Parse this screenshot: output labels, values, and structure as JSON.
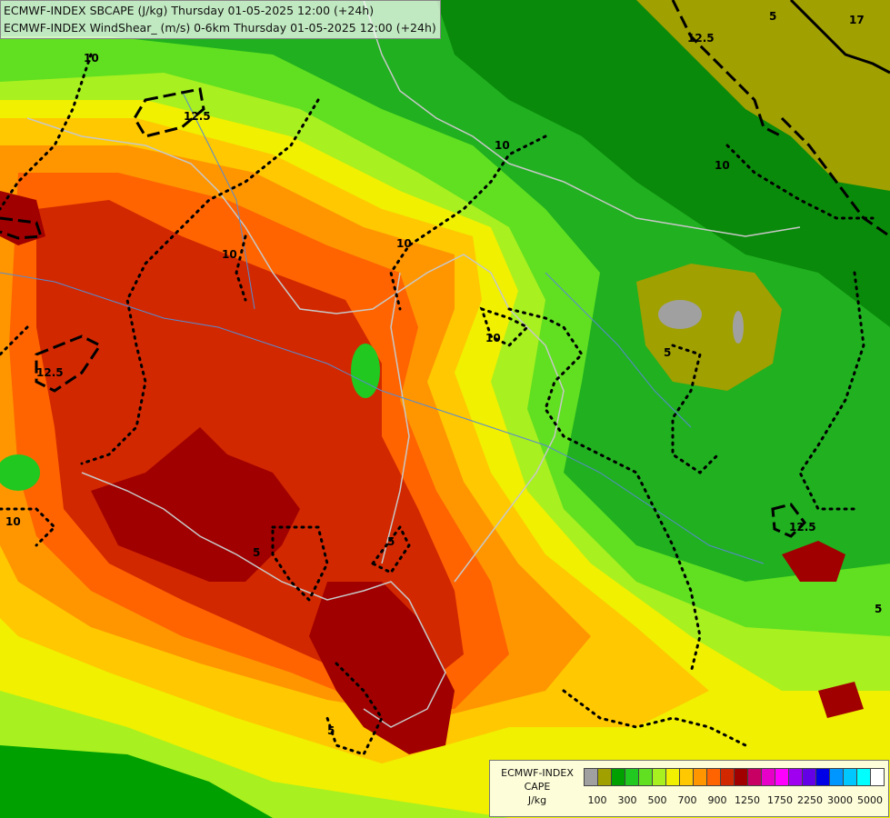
{
  "title_lines": [
    "ECMWF-INDEX SBCAPE (J/kg) Thursday 01-05-2025 12:00 (+24h)",
    "ECMWF-INDEX WindShear_ (m/s) 0-6km Thursday 01-05-2025 12:00 (+24h)"
  ],
  "legend": {
    "line1": "ECMWF-INDEX",
    "line2": "CAPE",
    "line3": "J/kg",
    "colors": [
      "#a0a0a0",
      "#a0a000",
      "#00a000",
      "#20c820",
      "#60e020",
      "#a8f020",
      "#f0f000",
      "#ffc800",
      "#ff9600",
      "#ff6400",
      "#d22800",
      "#a00000",
      "#c80064",
      "#e600c8",
      "#ff00ff",
      "#a000f0",
      "#6400e6",
      "#0000e6",
      "#0096ff",
      "#00c8ff",
      "#00ffff",
      "#ffffff"
    ],
    "ticks": [
      "100",
      "300",
      "500",
      "700",
      "900",
      "1250",
      "1750",
      "2250",
      "3000",
      "5000"
    ]
  },
  "contour_labels": [
    "5",
    "17",
    "12.5",
    "12.5",
    "10",
    "10",
    "10",
    "10",
    "10",
    "10",
    "12.5",
    "5",
    "10",
    "5",
    "5",
    "12.5",
    "5",
    "5"
  ]
}
